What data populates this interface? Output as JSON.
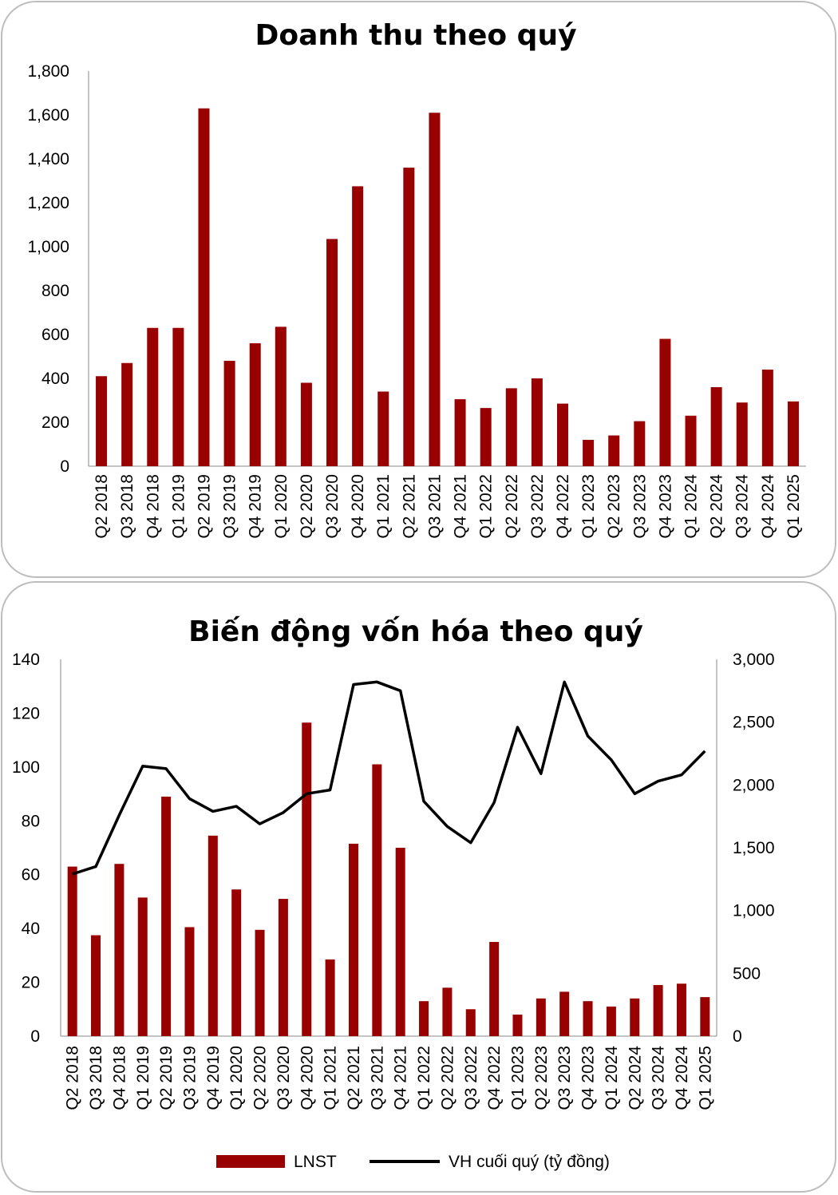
{
  "chart_data": [
    {
      "type": "bar",
      "title": "Doanh thu theo quý",
      "xlabel": "",
      "ylabel": "",
      "ylim": [
        0,
        1800
      ],
      "yticks": [
        "0",
        "200",
        "400",
        "600",
        "800",
        "1,000",
        "1,200",
        "1,400",
        "1,600",
        "1,800"
      ],
      "color": "#990000",
      "categories": [
        "Q2 2018",
        "Q3 2018",
        "Q4 2018",
        "Q1 2019",
        "Q2 2019",
        "Q3 2019",
        "Q4 2019",
        "Q1 2020",
        "Q2 2020",
        "Q3 2020",
        "Q4 2020",
        "Q1 2021",
        "Q2 2021",
        "Q3 2021",
        "Q4 2021",
        "Q1 2022",
        "Q2 2022",
        "Q3 2022",
        "Q4 2022",
        "Q1 2023",
        "Q2 2023",
        "Q3 2023",
        "Q4 2023",
        "Q1 2024",
        "Q2 2024",
        "Q3 2024",
        "Q4 2024",
        "Q1 2025"
      ],
      "values": [
        410,
        470,
        630,
        630,
        1630,
        480,
        560,
        635,
        380,
        1035,
        1275,
        340,
        1360,
        1610,
        305,
        265,
        355,
        400,
        285,
        120,
        140,
        205,
        580,
        230,
        360,
        290,
        440,
        295
      ]
    },
    {
      "type": "bar",
      "title": "Biến động vốn hóa theo quý",
      "xlabel": "",
      "ylabel": "",
      "ylim": [
        0,
        140
      ],
      "y2lim": [
        0,
        3000
      ],
      "yticks": [
        "0",
        "20",
        "40",
        "60",
        "80",
        "100",
        "120",
        "140"
      ],
      "y2ticks": [
        "0",
        "500",
        "1,000",
        "1,500",
        "2,000",
        "2,500",
        "3,000"
      ],
      "legend_position": "bottom",
      "categories": [
        "Q2 2018",
        "Q3 2018",
        "Q4 2018",
        "Q1 2019",
        "Q2 2019",
        "Q3 2019",
        "Q4 2019",
        "Q1 2020",
        "Q2 2020",
        "Q3 2020",
        "Q4 2020",
        "Q1 2021",
        "Q2 2021",
        "Q3 2021",
        "Q4 2021",
        "Q1 2022",
        "Q2 2022",
        "Q3 2022",
        "Q4 2022",
        "Q1 2023",
        "Q2 2023",
        "Q3 2023",
        "Q4 2023",
        "Q1 2024",
        "Q2 2024",
        "Q3 2024",
        "Q4 2024",
        "Q1 2025"
      ],
      "series": [
        {
          "name": "LNST",
          "type": "bar",
          "axis": "left",
          "color": "#990000",
          "values": [
            63,
            37.5,
            64,
            51.5,
            89,
            40.5,
            74.5,
            54.5,
            39.5,
            51,
            116.5,
            28.5,
            71.5,
            101,
            70,
            13,
            18,
            10,
            35,
            8,
            14,
            16.5,
            13,
            11,
            14,
            19,
            19.5,
            14.5
          ]
        },
        {
          "name": "VH cuối quý (tỷ đồng)",
          "type": "line",
          "axis": "right",
          "color": "#000000",
          "values": [
            1290,
            1350,
            1760,
            2150,
            2130,
            1890,
            1790,
            1830,
            1690,
            1780,
            1930,
            1960,
            2800,
            2820,
            2750,
            1870,
            1670,
            1540,
            1860,
            2460,
            2090,
            2820,
            2390,
            2200,
            1930,
            2030,
            2080,
            2270
          ]
        }
      ]
    }
  ]
}
